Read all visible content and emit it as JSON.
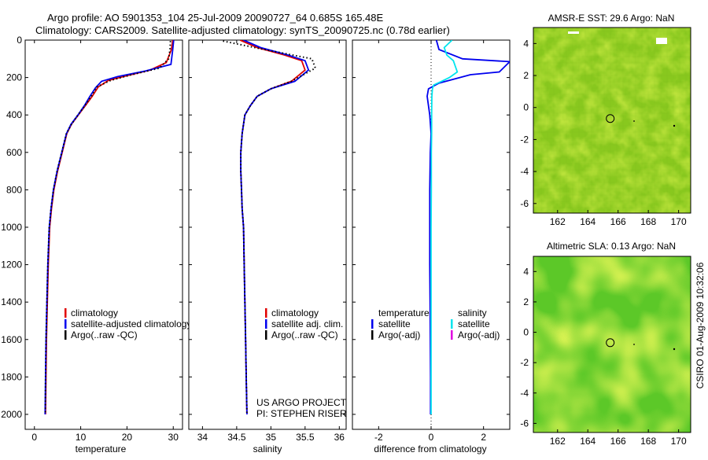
{
  "header": {
    "line1": "Argo profile: AO 5901353_104 25-Jul-2009 20090727_64 0.685S 165.48E",
    "line2": "Climatology: CARS2009. Satellite-adjusted climatology: synTS_20090725.nc (0.78d earlier)"
  },
  "colors": {
    "climatology": "#e00000",
    "satellite": "#0000ee",
    "argo": "#000000",
    "sal_satellite": "#00e5ee",
    "argo_adj": "#e000e0"
  },
  "credit": {
    "line1": "US ARGO PROJECT",
    "line2": "PI: STEPHEN RISER"
  },
  "footer": "CSIRO 01-Aug-2009 10:32:06",
  "chart_data": [
    {
      "type": "line",
      "xlabel": "temperature",
      "ylabel": "",
      "xlim": [
        -2,
        32
      ],
      "ylim": [
        0,
        2080
      ],
      "y_reversed": true,
      "xticks": [
        0,
        10,
        20,
        30
      ],
      "yticks": [
        0,
        200,
        400,
        600,
        800,
        1000,
        1200,
        1400,
        1600,
        1800,
        2000
      ],
      "legend": {
        "placement": "lower-middle",
        "entries": [
          "climatology",
          "satellite-adjusted climatology",
          "Argo(..raw -QC)"
        ]
      },
      "series": [
        {
          "name": "climatology",
          "x": [
            29.9,
            29.6,
            28.5,
            25.0,
            20.0,
            16.0,
            13.8,
            12.5,
            11.0,
            9.5,
            8.0,
            7.0,
            6.0,
            5.0,
            4.2,
            3.7,
            3.3,
            3.0,
            2.8,
            2.6,
            2.5,
            2.4
          ],
          "y": [
            0,
            50,
            120,
            160,
            190,
            215,
            250,
            300,
            350,
            400,
            450,
            500,
            600,
            700,
            800,
            900,
            1000,
            1200,
            1400,
            1600,
            1800,
            2000
          ]
        },
        {
          "name": "satellite-adjusted climatology",
          "x": [
            30.1,
            29.9,
            29.5,
            24.0,
            18.0,
            14.5,
            13.2,
            12.0,
            10.8,
            9.4,
            7.9,
            6.9,
            5.9,
            4.9,
            4.1,
            3.6,
            3.2,
            2.9,
            2.7,
            2.5,
            2.4,
            2.3
          ],
          "y": [
            0,
            50,
            130,
            165,
            195,
            220,
            255,
            300,
            350,
            400,
            450,
            500,
            600,
            700,
            800,
            900,
            1000,
            1200,
            1400,
            1600,
            1800,
            2000
          ]
        },
        {
          "name": "Argo(..raw -QC)",
          "x": [
            29.4,
            29.3,
            29.0,
            27.0,
            21.0,
            16.5,
            13.5,
            12.3,
            10.9,
            9.4,
            8.0,
            6.9,
            5.9,
            4.9,
            4.1,
            3.6,
            3.2,
            2.9,
            2.7,
            2.5,
            2.4,
            2.35
          ],
          "y": [
            5,
            50,
            100,
            150,
            185,
            215,
            250,
            300,
            350,
            400,
            450,
            500,
            600,
            700,
            800,
            900,
            1000,
            1200,
            1400,
            1600,
            1800,
            2000
          ]
        }
      ]
    },
    {
      "type": "line",
      "xlabel": "salinity",
      "ylabel": "",
      "xlim": [
        33.8,
        36.1
      ],
      "ylim": [
        0,
        2080
      ],
      "y_reversed": true,
      "xticks": [
        34,
        34.5,
        35,
        35.5,
        36
      ],
      "legend": {
        "placement": "lower-right",
        "entries": [
          "climatology",
          "satellite adj. clim.",
          "Argo(..raw -QC)"
        ]
      },
      "series": [
        {
          "name": "climatology",
          "x": [
            34.55,
            34.8,
            35.2,
            35.45,
            35.5,
            35.3,
            35.0,
            34.8,
            34.7,
            34.62,
            34.58,
            34.56,
            34.56,
            34.57,
            34.58,
            34.6,
            34.61,
            34.62,
            34.63,
            34.64,
            34.65
          ],
          "y": [
            0,
            40,
            80,
            110,
            160,
            220,
            260,
            300,
            350,
            400,
            500,
            600,
            700,
            800,
            900,
            1000,
            1200,
            1400,
            1600,
            1800,
            2000
          ]
        },
        {
          "name": "satellite adj. clim.",
          "x": [
            34.6,
            34.85,
            35.25,
            35.5,
            35.55,
            35.35,
            35.0,
            34.8,
            34.7,
            34.62,
            34.58,
            34.56,
            34.56,
            34.57,
            34.58,
            34.6,
            34.61,
            34.62,
            34.63,
            34.64,
            34.65
          ],
          "y": [
            0,
            40,
            80,
            110,
            160,
            220,
            260,
            300,
            350,
            400,
            500,
            600,
            700,
            800,
            900,
            1000,
            1200,
            1400,
            1600,
            1800,
            2000
          ]
        },
        {
          "name": "Argo(..raw -QC)",
          "x": [
            34.3,
            34.9,
            35.6,
            35.65,
            35.5,
            35.3,
            35.0,
            34.8,
            34.7,
            34.62,
            34.58,
            34.56,
            34.56,
            34.57,
            34.58,
            34.6,
            34.61,
            34.62,
            34.63,
            34.64,
            34.65
          ],
          "y": [
            5,
            50,
            100,
            150,
            180,
            220,
            260,
            300,
            350,
            400,
            500,
            600,
            700,
            800,
            900,
            1000,
            1200,
            1400,
            1600,
            1800,
            2000
          ]
        }
      ]
    },
    {
      "type": "line",
      "xlabel": "difference from climatology",
      "ylabel": "",
      "xlim": [
        -3,
        3
      ],
      "ylim": [
        0,
        2080
      ],
      "y_reversed": true,
      "xticks": [
        -2,
        0,
        2
      ],
      "legend": {
        "placement": "lower-middle",
        "entries": [
          "temperature",
          "satellite",
          "Argo(-adj)",
          "salinity",
          "satellite",
          "Argo(-adj)"
        ]
      },
      "series": [
        {
          "name": "temperature satellite",
          "x": [
            0.2,
            0.3,
            1.2,
            3.0,
            2.6,
            1.5,
            0.3,
            -0.1,
            -0.15,
            -0.05,
            0.0,
            -0.03,
            -0.05,
            -0.05,
            -0.05,
            -0.04,
            -0.03,
            -0.02,
            -0.02,
            -0.02
          ],
          "y": [
            0,
            50,
            100,
            115,
            170,
            185,
            230,
            260,
            300,
            400,
            500,
            600,
            800,
            1000,
            1200,
            1400,
            1600,
            1800,
            1900,
            2000
          ]
        },
        {
          "name": "salinity satellite",
          "x": [
            0.8,
            0.5,
            0.6,
            0.85,
            1.0,
            0.7,
            0.4,
            0.1,
            0.05,
            0.03,
            0.02,
            0.02,
            0.01,
            0.01,
            0.0,
            0.0,
            0.0,
            0.0,
            0.0,
            0.0
          ],
          "y": [
            0,
            40,
            80,
            110,
            170,
            200,
            220,
            240,
            260,
            300,
            400,
            500,
            600,
            800,
            1000,
            1200,
            1400,
            1600,
            1800,
            2000
          ]
        }
      ]
    },
    {
      "type": "heatmap",
      "title": "AMSR-E SST: 29.6 Argo: NaN",
      "xlim": [
        160.4,
        170.8
      ],
      "ylim": [
        -6.6,
        5.0
      ],
      "xticks": [
        162,
        164,
        166,
        168,
        170
      ],
      "yticks": [
        -6,
        -4,
        -2,
        0,
        2,
        4
      ],
      "argo_position": {
        "lon": 165.48,
        "lat": -0.685
      }
    },
    {
      "type": "heatmap",
      "title": "Altimetric SLA: 0.13 Argo: NaN",
      "xlim": [
        160.4,
        170.8
      ],
      "ylim": [
        -6.6,
        5.0
      ],
      "xticks": [
        162,
        164,
        166,
        168,
        170
      ],
      "yticks": [
        -6,
        -4,
        -2,
        0,
        2,
        4
      ],
      "argo_position": {
        "lon": 165.48,
        "lat": -0.685
      }
    }
  ]
}
